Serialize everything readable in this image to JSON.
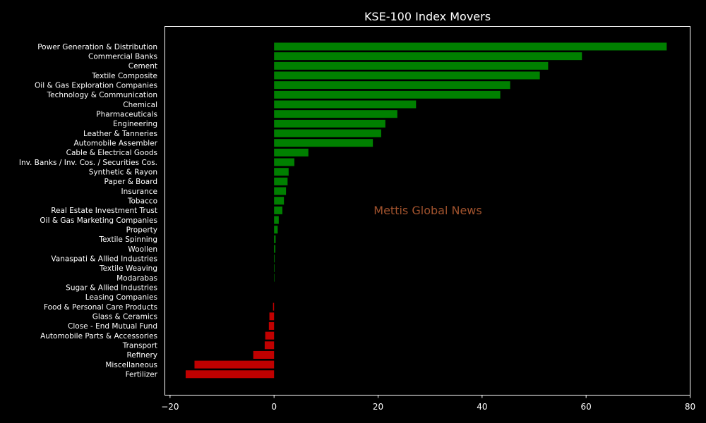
{
  "chart_data": {
    "type": "bar",
    "orientation": "horizontal",
    "title": "KSE-100 Index Movers",
    "xlabel": "",
    "ylabel": "",
    "xlim": [
      -21,
      80
    ],
    "xticks": [
      -20,
      0,
      20,
      40,
      60,
      80
    ],
    "tick_labels": [
      "−20",
      "0",
      "20",
      "40",
      "60",
      "80"
    ],
    "grid": false,
    "legend": "none",
    "categories": [
      "Power Generation & Distribution",
      "Commercial Banks",
      "Cement",
      "Textile Composite",
      "Oil & Gas Exploration Companies",
      "Technology & Communication",
      "Chemical",
      "Pharmaceuticals",
      "Engineering",
      "Leather & Tanneries",
      "Automobile Assembler",
      "Cable & Electrical Goods",
      "Inv. Banks / Inv. Cos. / Securities Cos.",
      "Synthetic & Rayon",
      "Paper & Board",
      "Insurance",
      "Tobacco",
      "Real Estate Investment Trust",
      "Oil & Gas Marketing Companies",
      "Property",
      "Textile Spinning",
      "Woollen",
      "Vanaspati & Allied Industries",
      "Textile Weaving",
      "Modarabas",
      "Sugar & Allied Industries",
      "Leasing Companies",
      "Food & Personal Care Products",
      "Glass & Ceramics",
      "Close - End Mutual Fund",
      "Automobile Parts & Accessories",
      "Transport",
      "Refinery",
      "Miscellaneous",
      "Fertilizer"
    ],
    "values": [
      75.5,
      59.2,
      52.7,
      51.1,
      45.4,
      43.5,
      27.3,
      23.7,
      21.4,
      20.6,
      19.0,
      6.6,
      3.9,
      2.8,
      2.6,
      2.3,
      1.9,
      1.6,
      0.9,
      0.7,
      0.3,
      0.25,
      0.12,
      0.1,
      0.08,
      0.0,
      0.0,
      -0.2,
      -0.9,
      -1.0,
      -1.7,
      -1.8,
      -4.0,
      -15.3,
      -17.0
    ],
    "colors": {
      "positive": "#008000",
      "negative": "#c00000"
    }
  },
  "watermark": {
    "text": "Mettis Global News",
    "color": "#a0522d"
  },
  "colors": {
    "background": "#000000",
    "axis": "#ffffff",
    "text": "#ffffff"
  }
}
